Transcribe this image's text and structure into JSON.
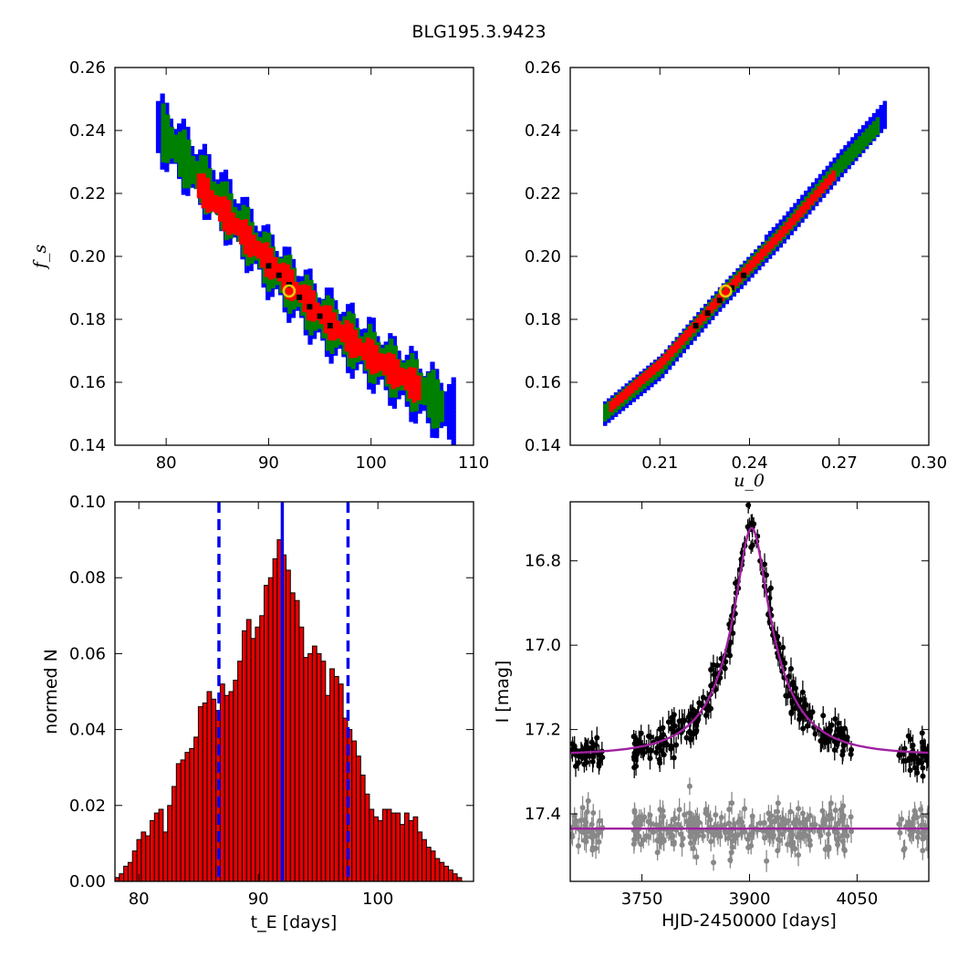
{
  "title": "BLG195.3.9423",
  "colors": {
    "sigma1": "#ff0000",
    "sigma2": "#008000",
    "sigma3": "#0000ff",
    "core": "#000000",
    "best": "#e8c80a",
    "hist": "#e50000",
    "cred": "#0000ee",
    "model": "#a020a0",
    "data": "#000000",
    "resid": "#888888"
  },
  "chart_data": [
    {
      "type": "scatter",
      "panel": "fs-vs-tE",
      "xlabel": "",
      "ylabel": "f_s",
      "xlim": [
        75,
        110
      ],
      "ylim": [
        0.14,
        0.26
      ],
      "xticks": [
        "80",
        "90",
        "100",
        "110"
      ],
      "yticks": [
        "0.14",
        "0.16",
        "0.18",
        "0.20",
        "0.22",
        "0.24",
        "0.26"
      ],
      "best_fit": {
        "x": 92.0,
        "y": 0.189
      },
      "contours": [
        {
          "level": "3sigma",
          "color": "blue",
          "band": [
            [
              79,
              0.241
            ],
            [
              85,
              0.218
            ],
            [
              90,
              0.197
            ],
            [
              95,
              0.18
            ],
            [
              100,
              0.168
            ],
            [
              105,
              0.156
            ],
            [
              108,
              0.149
            ]
          ],
          "width": 0.01
        },
        {
          "level": "2sigma",
          "color": "green",
          "band": [
            [
              79.5,
              0.239
            ],
            [
              85,
              0.217
            ],
            [
              90,
              0.197
            ],
            [
              95,
              0.18
            ],
            [
              100,
              0.168
            ],
            [
              105,
              0.157
            ],
            [
              107,
              0.151
            ]
          ],
          "width": 0.0075
        },
        {
          "level": "1sigma",
          "color": "red",
          "band": [
            [
              83,
              0.222
            ],
            [
              87,
              0.208
            ],
            [
              91,
              0.194
            ],
            [
              95,
              0.181
            ],
            [
              99,
              0.17
            ],
            [
              103,
              0.161
            ],
            [
              104.5,
              0.158
            ]
          ],
          "width": 0.0045
        }
      ],
      "core_points": [
        [
          90,
          0.197
        ],
        [
          91,
          0.194
        ],
        [
          92,
          0.191
        ],
        [
          93,
          0.187
        ],
        [
          94,
          0.184
        ],
        [
          95,
          0.181
        ],
        [
          96,
          0.178
        ]
      ]
    },
    {
      "type": "scatter",
      "panel": "fs-vs-u0",
      "xlabel": "u_0",
      "ylabel": "",
      "xlim": [
        0.18,
        0.3
      ],
      "ylim": [
        0.14,
        0.26
      ],
      "xticks": [
        "0.21",
        "0.24",
        "0.27",
        "0.30"
      ],
      "yticks": [
        "0.14",
        "0.16",
        "0.18",
        "0.20",
        "0.22",
        "0.24",
        "0.26"
      ],
      "best_fit": {
        "x": 0.232,
        "y": 0.189
      },
      "contours": [
        {
          "level": "3sigma",
          "color": "blue",
          "band": [
            [
              0.191,
              0.15
            ],
            [
              0.21,
              0.165
            ],
            [
              0.23,
              0.187
            ],
            [
              0.25,
              0.207
            ],
            [
              0.27,
              0.229
            ],
            [
              0.285,
              0.245
            ]
          ],
          "width": 0.0035
        },
        {
          "level": "2sigma",
          "color": "green",
          "band": [
            [
              0.191,
              0.15
            ],
            [
              0.21,
              0.165
            ],
            [
              0.23,
              0.187
            ],
            [
              0.25,
              0.207
            ],
            [
              0.27,
              0.229
            ],
            [
              0.283,
              0.242
            ]
          ],
          "width": 0.0022
        },
        {
          "level": "1sigma",
          "color": "red",
          "band": [
            [
              0.193,
              0.152
            ],
            [
              0.21,
              0.166
            ],
            [
              0.23,
              0.187
            ],
            [
              0.25,
              0.207
            ],
            [
              0.268,
              0.226
            ]
          ],
          "width": 0.0012
        }
      ],
      "core_points": [
        [
          0.222,
          0.178
        ],
        [
          0.226,
          0.182
        ],
        [
          0.23,
          0.186
        ],
        [
          0.234,
          0.19
        ],
        [
          0.238,
          0.194
        ]
      ]
    },
    {
      "type": "bar",
      "panel": "tE-histogram",
      "xlabel": "t_E [days]",
      "ylabel": "normed N",
      "xlim": [
        78,
        108
      ],
      "ylim": [
        0,
        0.1
      ],
      "xticks": [
        "80",
        "90",
        "100"
      ],
      "yticks": [
        "0.00",
        "0.02",
        "0.04",
        "0.06",
        "0.08",
        "0.10"
      ],
      "bin_width": 0.42,
      "bin_start": 78.0,
      "values": [
        0.001,
        0.002,
        0.004,
        0.005,
        0.008,
        0.011,
        0.013,
        0.012,
        0.016,
        0.018,
        0.019,
        0.013,
        0.02,
        0.025,
        0.031,
        0.032,
        0.034,
        0.035,
        0.038,
        0.046,
        0.047,
        0.05,
        0.048,
        0.045,
        0.052,
        0.049,
        0.05,
        0.053,
        0.058,
        0.066,
        0.069,
        0.064,
        0.067,
        0.07,
        0.078,
        0.08,
        0.085,
        0.09,
        0.086,
        0.082,
        0.076,
        0.074,
        0.067,
        0.059,
        0.06,
        0.062,
        0.06,
        0.058,
        0.049,
        0.056,
        0.054,
        0.052,
        0.043,
        0.04,
        0.037,
        0.033,
        0.028,
        0.023,
        0.019,
        0.017,
        0.016,
        0.019,
        0.019,
        0.018,
        0.018,
        0.015,
        0.018,
        0.016,
        0.017,
        0.013,
        0.011,
        0.009,
        0.008,
        0.006,
        0.005,
        0.004,
        0.003,
        0.002,
        0.001
      ],
      "median": 92.0,
      "lower": 86.7,
      "upper": 97.5
    },
    {
      "type": "scatter",
      "panel": "light-curve",
      "xlabel": "HJD-2450000 [days]",
      "ylabel": "I [mag]",
      "xlim": [
        3650,
        4150
      ],
      "ylim": [
        17.56,
        16.66
      ],
      "xticks": [
        "3750",
        "3900",
        "4050"
      ],
      "yticks": [
        "16.8",
        "17.0",
        "17.2",
        "17.4"
      ],
      "model": {
        "t0": 3903,
        "tE": 92,
        "u0": 0.232,
        "fs": 0.189,
        "base": 17.26
      },
      "residual_offset": 17.435,
      "seasons": [
        [
          3652,
          3695
        ],
        [
          3738,
          4042
        ],
        [
          4108,
          4150
        ]
      ]
    }
  ]
}
